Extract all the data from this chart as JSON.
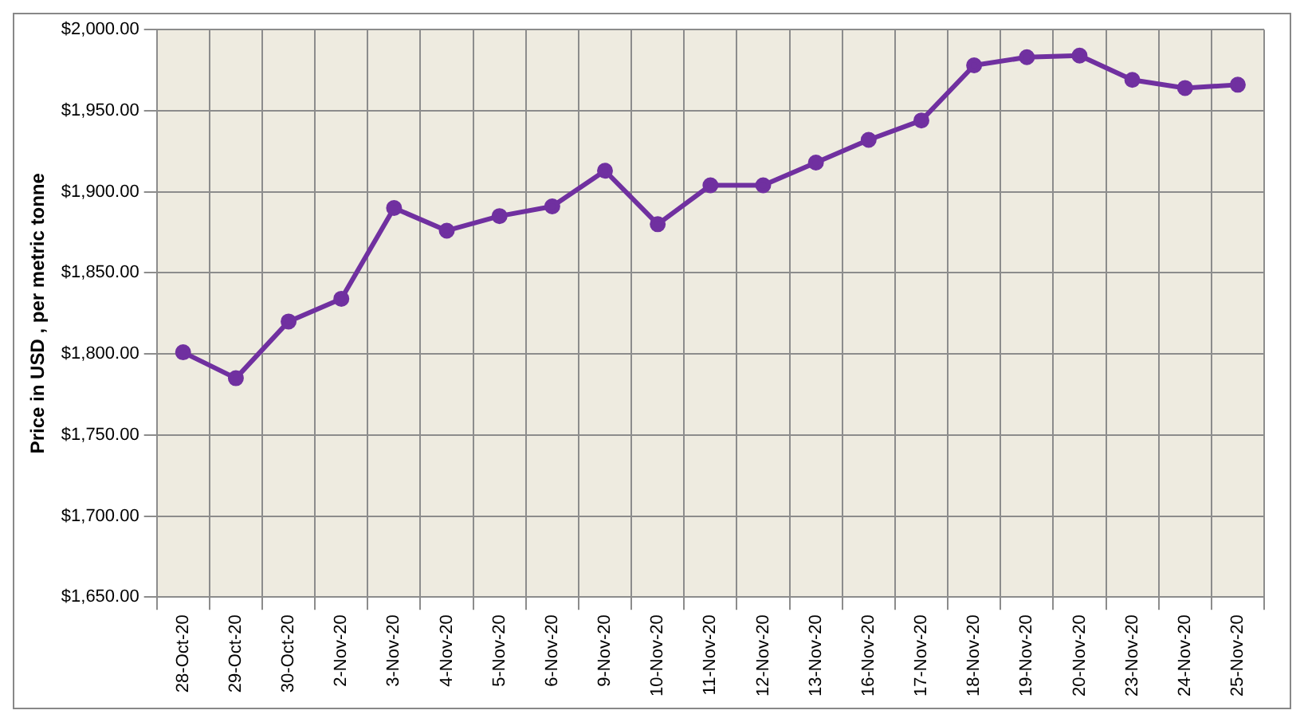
{
  "chart_data": {
    "type": "line",
    "ylabel": "Price in USD , per metric tonne",
    "categories": [
      "28-Oct-20",
      "29-Oct-20",
      "30-Oct-20",
      "2-Nov-20",
      "3-Nov-20",
      "4-Nov-20",
      "5-Nov-20",
      "6-Nov-20",
      "9-Nov-20",
      "10-Nov-20",
      "11-Nov-20",
      "12-Nov-20",
      "13-Nov-20",
      "16-Nov-20",
      "17-Nov-20",
      "18-Nov-20",
      "19-Nov-20",
      "20-Nov-20",
      "23-Nov-20",
      "24-Nov-20",
      "25-Nov-20"
    ],
    "series": [
      {
        "color": "#7030a0",
        "values": [
          1801,
          1785,
          1820,
          1834,
          1890,
          1876,
          1885,
          1891,
          1913,
          1880,
          1904,
          1904,
          1918,
          1932,
          1944,
          1978,
          1983,
          1984,
          1969,
          1964,
          1966
        ]
      }
    ],
    "ylim": [
      1650,
      2000
    ],
    "yticks": [
      {
        "value": 1650,
        "label": "$1,650.00"
      },
      {
        "value": 1700,
        "label": "$1,700.00"
      },
      {
        "value": 1750,
        "label": "$1,750.00"
      },
      {
        "value": 1800,
        "label": "$1,800.00"
      },
      {
        "value": 1850,
        "label": "$1,850.00"
      },
      {
        "value": 1900,
        "label": "$1,900.00"
      },
      {
        "value": 1950,
        "label": "$1,950.00"
      },
      {
        "value": 2000,
        "label": "$2,000.00"
      }
    ],
    "grid": true,
    "legend": false,
    "marker": "circle",
    "line_style": "solid"
  }
}
